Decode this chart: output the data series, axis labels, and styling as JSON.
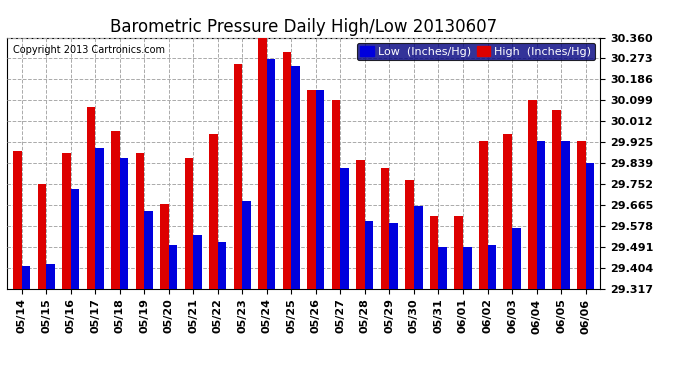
{
  "title": "Barometric Pressure Daily High/Low 20130607",
  "copyright": "Copyright 2013 Cartronics.com",
  "legend_low": "Low  (Inches/Hg)",
  "legend_high": "High  (Inches/Hg)",
  "dates": [
    "05/14",
    "05/15",
    "05/16",
    "05/17",
    "05/18",
    "05/19",
    "05/20",
    "05/21",
    "05/22",
    "05/23",
    "05/24",
    "05/25",
    "05/26",
    "05/27",
    "05/28",
    "05/29",
    "05/30",
    "05/31",
    "06/01",
    "06/02",
    "06/03",
    "06/04",
    "06/05",
    "06/06"
  ],
  "low": [
    29.41,
    29.42,
    29.73,
    29.9,
    29.86,
    29.64,
    29.5,
    29.54,
    29.51,
    29.68,
    30.27,
    30.24,
    30.14,
    29.82,
    29.6,
    29.59,
    29.66,
    29.49,
    29.49,
    29.5,
    29.57,
    29.93,
    29.93,
    29.84
  ],
  "high": [
    29.89,
    29.75,
    29.88,
    30.07,
    29.97,
    29.88,
    29.67,
    29.86,
    29.96,
    30.25,
    30.36,
    30.3,
    30.14,
    30.1,
    29.85,
    29.82,
    29.77,
    29.62,
    29.62,
    29.93,
    29.96,
    30.1,
    30.06,
    29.93
  ],
  "ymin": 29.317,
  "ymax": 30.36,
  "yticks": [
    29.317,
    29.404,
    29.491,
    29.578,
    29.665,
    29.752,
    29.839,
    29.925,
    30.012,
    30.099,
    30.186,
    30.273,
    30.36
  ],
  "bar_width": 0.35,
  "low_color": "#0000dd",
  "high_color": "#dd0000",
  "bg_color": "#ffffff",
  "grid_color": "#aaaaaa",
  "title_fontsize": 12,
  "tick_fontsize": 8,
  "copyright_fontsize": 7,
  "legend_fontsize": 8,
  "legend_bg": "#000080",
  "legend_text_color": "#ffffff"
}
